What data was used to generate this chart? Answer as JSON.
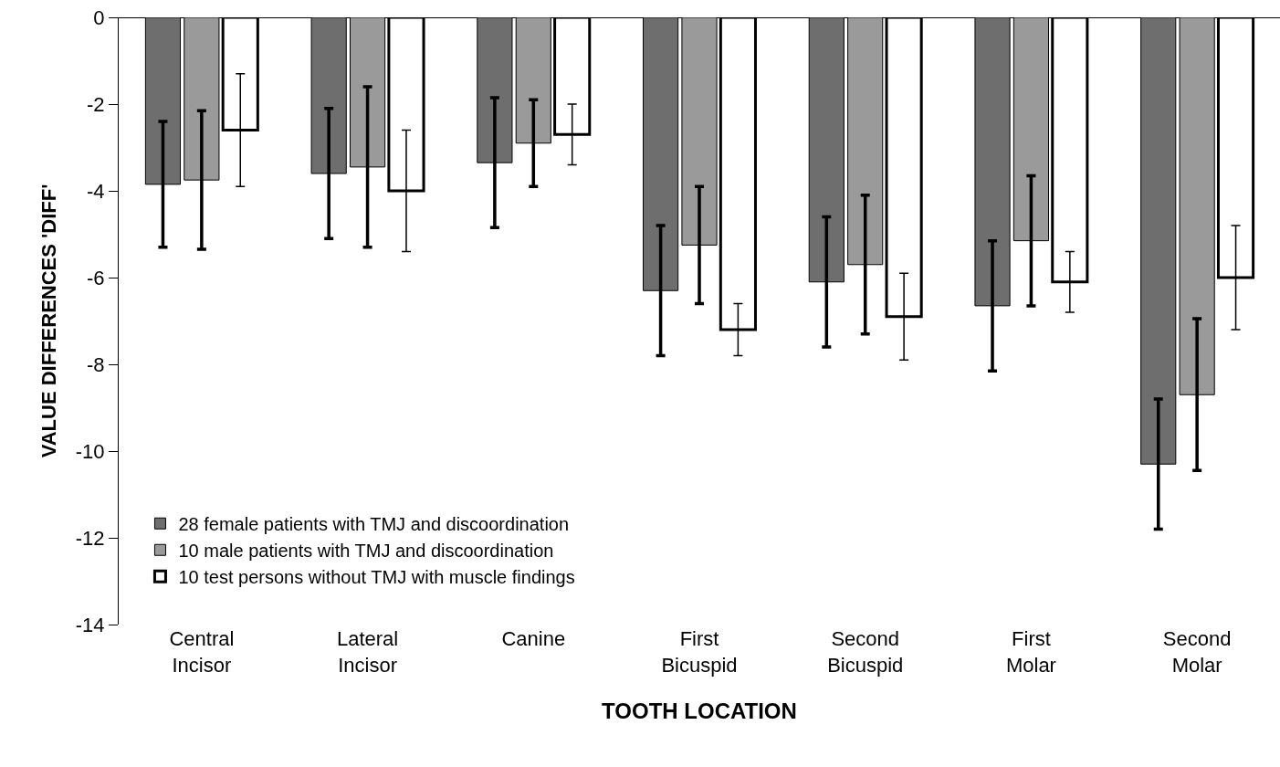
{
  "chart_data": {
    "type": "bar",
    "xlabel": "TOOTH LOCATION",
    "ylabel": "VALUE DIFFERENCES 'DIFF'",
    "categories": [
      "Central\nIncisor",
      "Lateral\nIncisor",
      "Canine",
      "First\nBicuspid",
      "Second\nBicuspid",
      "First\nMolar",
      "Second\nMolar"
    ],
    "series": [
      {
        "name": "28 female patients with TMJ and discoordination",
        "color": "#6e6e6e",
        "values": [
          -3.85,
          -3.6,
          -3.35,
          -6.3,
          -6.1,
          -6.65,
          -10.3
        ],
        "errors": [
          1.45,
          1.5,
          1.5,
          1.5,
          1.5,
          1.5,
          1.5
        ]
      },
      {
        "name": "10 male patients with TMJ and discoordination",
        "color": "#9a9a9a",
        "values": [
          -3.75,
          -3.45,
          -2.9,
          -5.25,
          -5.7,
          -5.15,
          -8.7
        ],
        "errors": [
          1.6,
          1.85,
          1.0,
          1.35,
          1.6,
          1.5,
          1.75
        ]
      },
      {
        "name": "10 test persons without TMJ with muscle findings",
        "color": "#ffffff",
        "values": [
          -2.6,
          -4.0,
          -2.7,
          -7.2,
          -6.9,
          -6.1,
          -6.0
        ],
        "errors": [
          1.3,
          1.4,
          0.7,
          0.6,
          1.0,
          0.7,
          1.2
        ]
      }
    ],
    "ylim": [
      -14,
      0
    ],
    "yticks": [
      -14,
      -12,
      -10,
      -8,
      -6,
      -4,
      -2,
      0
    ],
    "grid": false,
    "legend": "bottom left"
  }
}
